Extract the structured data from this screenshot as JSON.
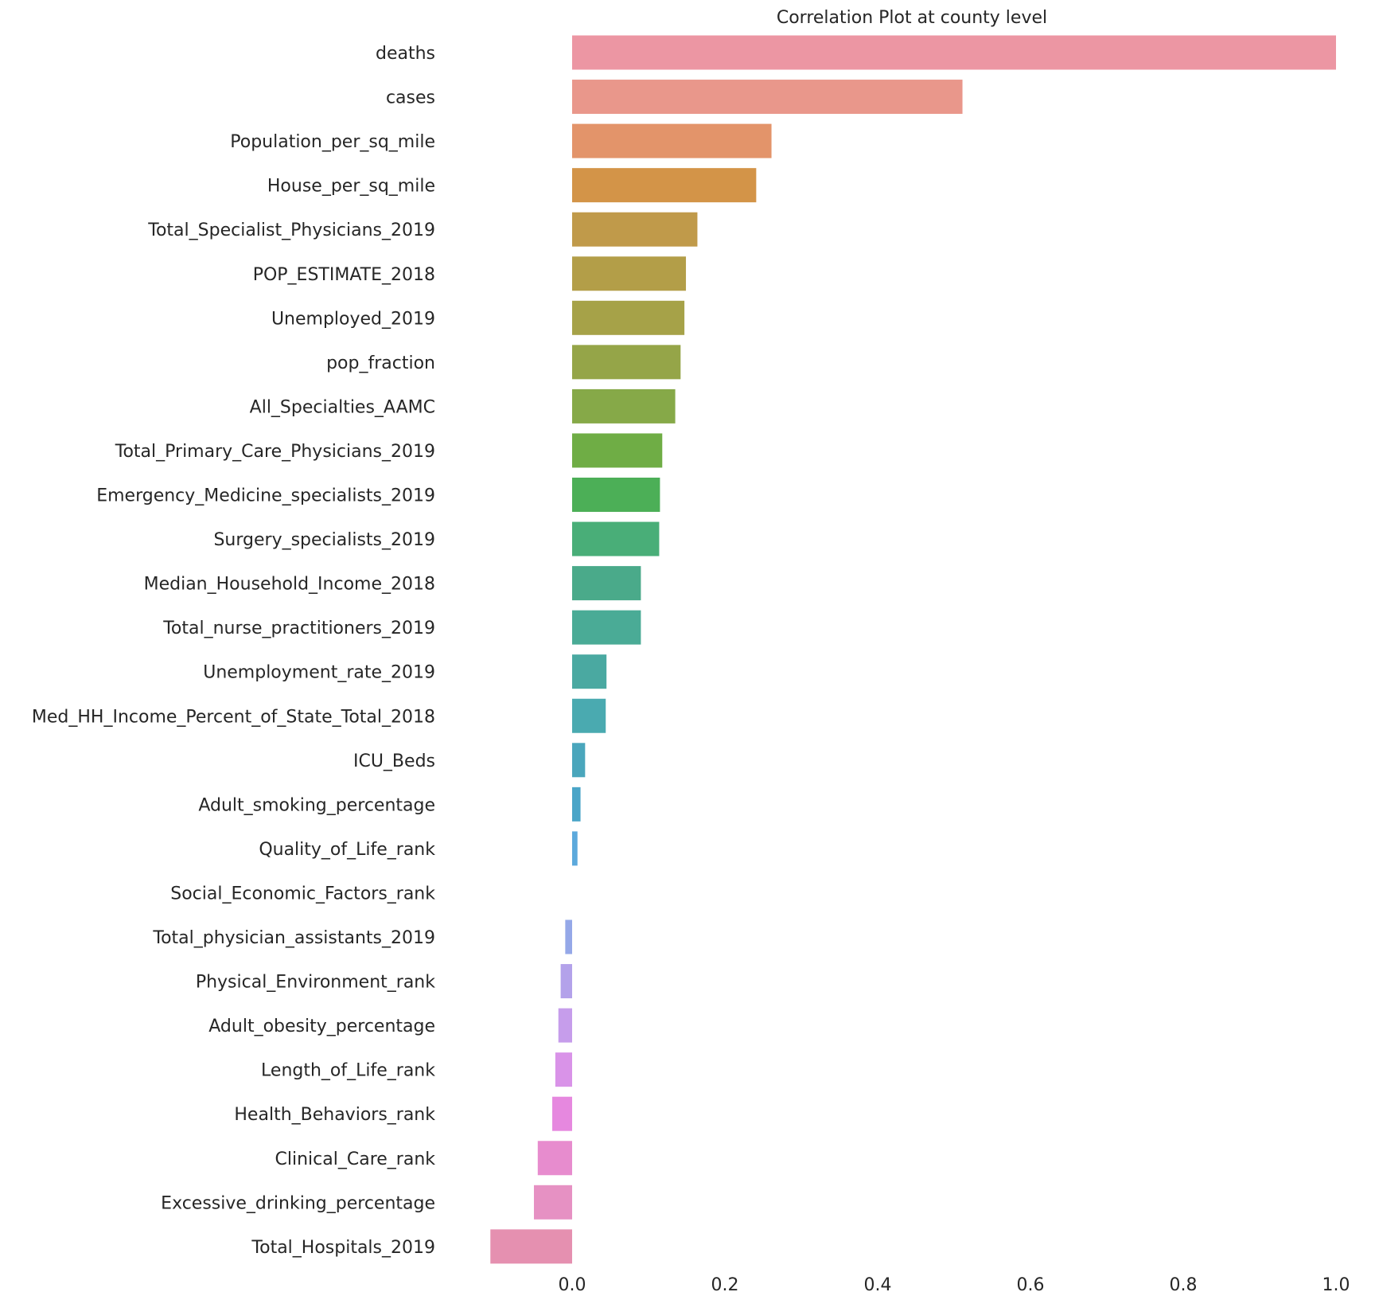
{
  "chart_data": {
    "type": "bar",
    "orientation": "horizontal",
    "title": "Correlation Plot at county level",
    "xlabel": "",
    "ylabel": "",
    "xlim": [
      -0.12,
      1.0
    ],
    "xticks": [
      "0.0",
      "0.2",
      "0.4",
      "0.6",
      "0.8",
      "1.0"
    ],
    "grid": false,
    "categories": [
      "deaths",
      "cases",
      "Population_per_sq_mile",
      "House_per_sq_mile",
      "Total_Specialist_Physicians_2019",
      "POP_ESTIMATE_2018",
      "Unemployed_2019",
      "pop_fraction",
      "All_Specialties_AAMC",
      "Total_Primary_Care_Physicians_2019",
      "Emergency_Medicine_specialists_2019",
      "Surgery_specialists_2019",
      "Median_Household_Income_2018",
      "Total_nurse_practitioners_2019",
      "Unemployment_rate_2019",
      "Med_HH_Income_Percent_of_State_Total_2018",
      "ICU_Beds",
      "Adult_smoking_percentage",
      "Quality_of_Life_rank",
      "Social_Economic_Factors_rank",
      "Total_physician_assistants_2019",
      "Physical_Environment_rank",
      "Adult_obesity_percentage",
      "Length_of_Life_rank",
      "Health_Behaviors_rank",
      "Clinical_Care_rank",
      "Excessive_drinking_percentage",
      "Total_Hospitals_2019"
    ],
    "values": [
      1.0,
      0.511,
      0.261,
      0.241,
      0.164,
      0.149,
      0.147,
      0.142,
      0.135,
      0.118,
      0.115,
      0.114,
      0.09,
      0.09,
      0.045,
      0.044,
      0.017,
      0.011,
      0.007,
      0.0,
      -0.009,
      -0.015,
      -0.018,
      -0.022,
      -0.026,
      -0.045,
      -0.05,
      -0.107
    ],
    "colors": [
      "#ec96a3",
      "#e9978b",
      "#e3946a",
      "#d39448",
      "#c09a4a",
      "#b39e48",
      "#a6a248",
      "#95a548",
      "#86a948",
      "#6fad45",
      "#4caf57",
      "#49ae78",
      "#4aaa8a",
      "#4aab96",
      "#4aa9a1",
      "#4aaab0",
      "#4aa6bc",
      "#4aa5c8",
      "#5ca9dc",
      "#ffffff",
      "#95a8e8",
      "#b3a2ea",
      "#c69deb",
      "#d993e8",
      "#e688df",
      "#e78cce",
      "#e691c3",
      "#e590b0"
    ]
  }
}
